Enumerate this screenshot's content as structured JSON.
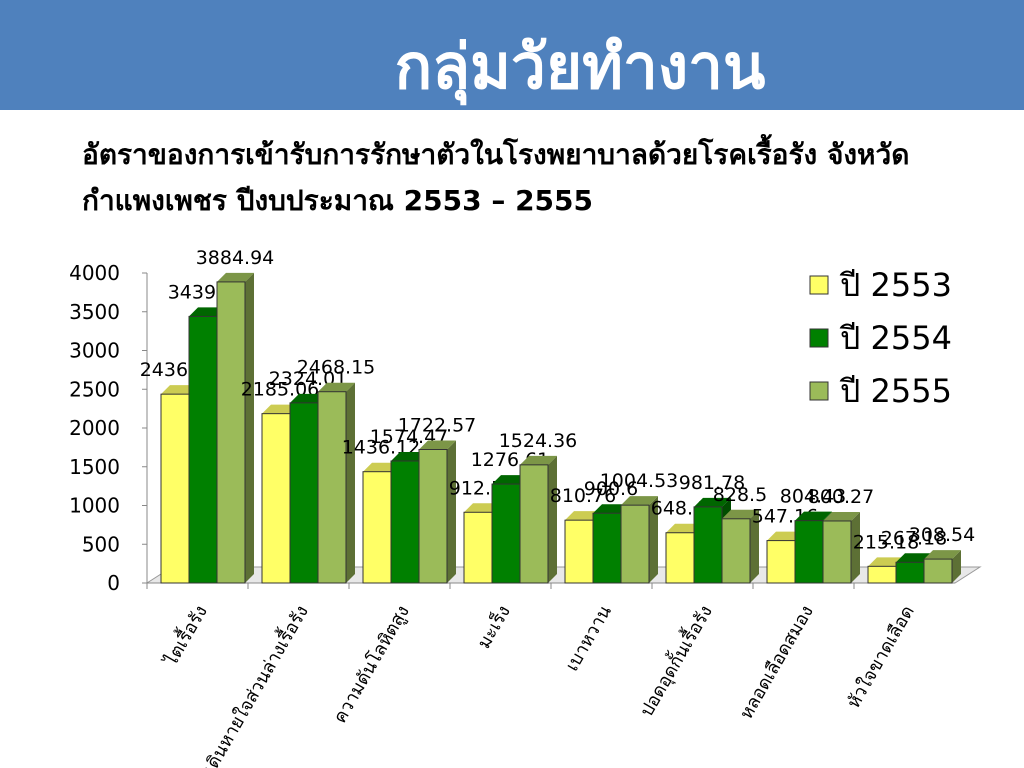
{
  "chart_data": {
    "type": "bar3d",
    "title": "กลุ่มวัยทำงาน",
    "subtitle": "อัตราของการเข้ารับการรักษาตัวในโรงพยาบาลด้วยโรคเรื้อรัง จังหวัดกำแพงเพชร  ปีงบประมาณ  2553 – 2555",
    "categories": [
      "ไตเรื้อรัง",
      "ทางเดินหายใจส่วนล่างเรื้อรัง",
      "ความดันโลหิตสูง",
      "มะเร็ง",
      "เบาหวาน",
      "ปอดอุดกั้นเรื้อรัง",
      "หลอดเลือดสมอง",
      "หัวใจขาดเลือด"
    ],
    "series": [
      {
        "name": "ปี 2553",
        "color": "#ffff66",
        "values": [
          2436.69,
          2185.06,
          1436.12,
          912.57,
          810.76,
          648.42,
          547.16,
          215.18
        ]
      },
      {
        "name": "ปี 2554",
        "color": "#008000",
        "values": [
          3439.93,
          2324.01,
          1574.47,
          1276.61,
          900.6,
          981.78,
          804.43,
          267.18
        ]
      },
      {
        "name": "ปี 2555",
        "color": "#9bbb59",
        "values": [
          3884.94,
          2468.15,
          1722.57,
          1524.36,
          1004.53,
          828.5,
          800.27,
          308.54
        ]
      }
    ],
    "ylim": [
      0,
      4000
    ],
    "yticks": [
      0,
      500,
      1000,
      1500,
      2000,
      2500,
      3000,
      3500,
      4000
    ],
    "legend": "right",
    "grid": false
  }
}
